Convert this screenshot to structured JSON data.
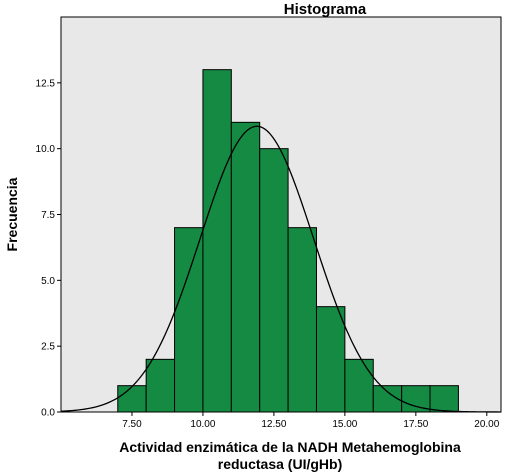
{
  "chart_data": {
    "type": "bar",
    "title": "Histograma",
    "xlabel_lines": [
      "Actividad enzimática de la NADH Metahemoglobina",
      "reductasa (UI/gHb)"
    ],
    "ylabel": "Frecuencia",
    "bin_edges": [
      7,
      8,
      9,
      10,
      11,
      12,
      13,
      14,
      15,
      16,
      17,
      18,
      19
    ],
    "values": [
      1,
      2,
      7,
      13,
      11,
      10,
      7,
      4,
      2,
      1,
      1,
      1
    ],
    "xlim": [
      5.0,
      20.5
    ],
    "ylim": [
      0,
      15
    ],
    "xticks": [
      7.5,
      10.0,
      12.5,
      15.0,
      17.5,
      20.0
    ],
    "xtick_labels": [
      "7.50",
      "10.00",
      "12.50",
      "15.00",
      "17.50",
      "20.00"
    ],
    "yticks": [
      0,
      2.5,
      5.0,
      7.5,
      10.0,
      12.5
    ],
    "ytick_labels": [
      "0.0",
      "2.5",
      "5.0",
      "7.5",
      "10.0",
      "12.5"
    ],
    "normal_curve": {
      "mean": 11.9,
      "sd": 2.0,
      "peak": 10.85
    },
    "grid": false,
    "colors": {
      "plot_background": "#e8e8e8",
      "bar_fill": "#148a43",
      "bar_stroke": "#000000",
      "curve": "#000000"
    }
  }
}
